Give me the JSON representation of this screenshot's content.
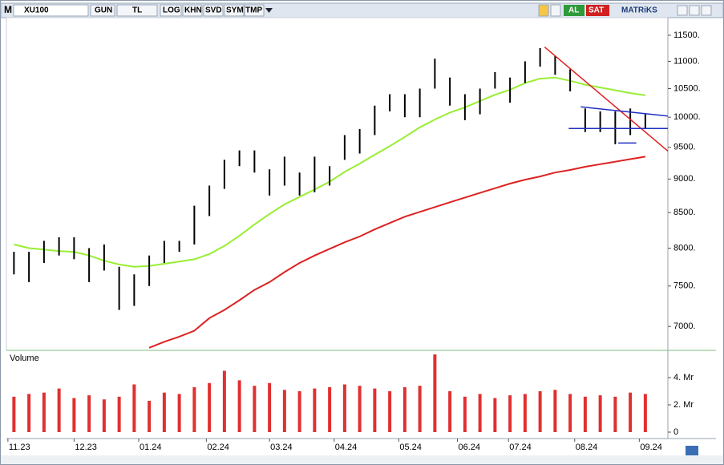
{
  "toolbar": {
    "app_mark": "M",
    "symbol": "XU100",
    "buttons": [
      "GUN",
      "TL",
      "LOG",
      "KHN",
      "SVD",
      "SYM",
      "TMP"
    ],
    "buy": "AL",
    "sell": "SAT",
    "brand": "MATRiKS"
  },
  "chart_data": [
    {
      "type": "hilo",
      "log_scale": true,
      "color": "#000000",
      "x": [
        0,
        1,
        2,
        3,
        4,
        5,
        6,
        7,
        8,
        9,
        10,
        11,
        12,
        13,
        14,
        15,
        16,
        17,
        18,
        19,
        20,
        21,
        22,
        23,
        24,
        25,
        26,
        27,
        28,
        29,
        30,
        31,
        32,
        33,
        34,
        35,
        36,
        37,
        38,
        39,
        40,
        41,
        42
      ],
      "high": [
        7950,
        7950,
        8100,
        8150,
        8150,
        8000,
        8050,
        7750,
        7650,
        7900,
        8100,
        8100,
        8600,
        8900,
        9300,
        9450,
        9450,
        9150,
        9350,
        9100,
        9350,
        9200,
        9700,
        9800,
        10200,
        10400,
        10400,
        10500,
        11050,
        10700,
        10400,
        10500,
        10800,
        10700,
        11000,
        11250,
        11100,
        10850,
        10150,
        10100,
        10100,
        10150,
        10050
      ],
      "low": [
        7650,
        7550,
        7800,
        7900,
        7850,
        7550,
        7700,
        7200,
        7250,
        7500,
        7800,
        7950,
        8050,
        8450,
        8850,
        9200,
        9100,
        8750,
        8900,
        8750,
        8800,
        8900,
        9300,
        9400,
        9700,
        10100,
        10000,
        10000,
        10500,
        10200,
        9950,
        10050,
        10500,
        10250,
        10600,
        10900,
        10750,
        10450,
        9750,
        9750,
        9550,
        9700,
        9800
      ],
      "lines": [
        {
          "color": "#99ee33",
          "values": [
            8050,
            8000,
            7980,
            7960,
            7950,
            7900,
            7830,
            7780,
            7750,
            7760,
            7790,
            7820,
            7850,
            7920,
            8030,
            8170,
            8330,
            8480,
            8620,
            8730,
            8840,
            8960,
            9110,
            9240,
            9380,
            9520,
            9670,
            9830,
            9960,
            10080,
            10170,
            10280,
            10390,
            10480,
            10600,
            10680,
            10700,
            10640,
            10570,
            10520,
            10470,
            10420,
            10380
          ]
        },
        {
          "color": "#dd2222",
          "values": [
            null,
            null,
            null,
            null,
            null,
            null,
            null,
            null,
            null,
            6750,
            6820,
            6880,
            6950,
            7100,
            7200,
            7320,
            7450,
            7550,
            7680,
            7800,
            7900,
            7990,
            8080,
            8160,
            8260,
            8350,
            8440,
            8510,
            8580,
            8650,
            8720,
            8790,
            8860,
            8930,
            8990,
            9040,
            9100,
            9140,
            9190,
            9230,
            9270,
            9310,
            9350
          ]
        }
      ],
      "trendlines": [
        {
          "color": "#e02020",
          "x": [
            35.3,
            43.5
          ],
          "values": [
            11270,
            9440
          ]
        },
        {
          "color": "#2030c0",
          "x": [
            37.7,
            43.5
          ],
          "values": [
            10180,
            10020
          ]
        },
        {
          "color": "#2030c0",
          "x": [
            36.9,
            43.5
          ],
          "values": [
            9810,
            9810
          ]
        },
        {
          "color": "#2030c0",
          "x": [
            40.2,
            41.4
          ],
          "values": [
            9570,
            9570
          ]
        }
      ],
      "xlim": [
        -0.5,
        43.5
      ],
      "ylim": [
        6730,
        11850
      ],
      "yticks": [
        {
          "value": 7000,
          "label": "7000."
        },
        {
          "value": 7500,
          "label": "7500."
        },
        {
          "value": 8000,
          "label": "8000."
        },
        {
          "value": 8500,
          "label": "8500."
        },
        {
          "value": 9000,
          "label": "9000."
        },
        {
          "value": 9500,
          "label": "9500."
        },
        {
          "value": 10000,
          "label": "10000."
        },
        {
          "value": 10500,
          "label": "10500."
        },
        {
          "value": 11000,
          "label": "11000."
        },
        {
          "value": 11500,
          "label": "11500."
        }
      ]
    },
    {
      "type": "bar",
      "title": "Volume",
      "color": "#e03030",
      "x": [
        0,
        1,
        2,
        3,
        4,
        5,
        6,
        7,
        8,
        9,
        10,
        11,
        12,
        13,
        14,
        15,
        16,
        17,
        18,
        19,
        20,
        21,
        22,
        23,
        24,
        25,
        26,
        27,
        28,
        29,
        30,
        31,
        32,
        33,
        34,
        35,
        36,
        37,
        38,
        39,
        40,
        41,
        42
      ],
      "values": [
        2.6,
        2.8,
        2.9,
        3.2,
        2.5,
        2.7,
        2.4,
        2.6,
        3.5,
        2.3,
        2.9,
        2.8,
        3.3,
        3.6,
        4.5,
        3.8,
        3.4,
        3.6,
        3.1,
        3.0,
        3.2,
        3.3,
        3.5,
        3.4,
        3.2,
        3.0,
        3.3,
        3.4,
        5.7,
        3.0,
        2.6,
        2.8,
        2.5,
        2.7,
        2.8,
        3.0,
        3.1,
        2.8,
        2.6,
        2.7,
        2.6,
        2.9,
        2.8
      ],
      "xlim": [
        -0.5,
        43.5
      ],
      "ylim": [
        0,
        5.94
      ],
      "yticks": [
        0,
        {
          "value": 2,
          "label": "2. Mr"
        },
        {
          "value": 4,
          "label": "4. Mr"
        }
      ],
      "xticks": [
        {
          "value": -0.4,
          "label": "11.23"
        },
        {
          "value": 4.0,
          "label": "12.23"
        },
        {
          "value": 8.3,
          "label": "01.24"
        },
        {
          "value": 12.8,
          "label": "02.24"
        },
        {
          "value": 17.0,
          "label": "03.24"
        },
        {
          "value": 21.3,
          "label": "04.24"
        },
        {
          "value": 25.6,
          "label": "05.24"
        },
        {
          "value": 29.5,
          "label": "06.24"
        },
        {
          "value": 32.9,
          "label": "07.24"
        },
        {
          "value": 37.3,
          "label": "08.24"
        },
        {
          "value": 41.6,
          "label": "09.24"
        }
      ]
    }
  ]
}
